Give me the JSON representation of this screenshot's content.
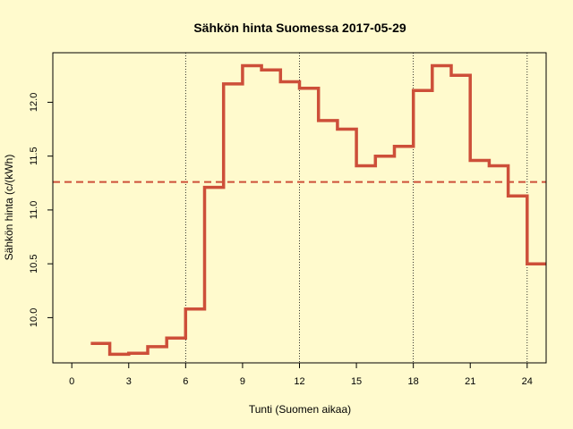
{
  "chart_data": {
    "type": "line",
    "style": "step",
    "title": "Sähkön hinta Suomessa 2017-05-29",
    "xlabel": "Tunti (Suomen aikaa)",
    "ylabel": "Sähkön hinta (c/(kWh)",
    "xlim": [
      -1,
      25
    ],
    "ylim": [
      9.58,
      12.46
    ],
    "xticks": [
      0,
      3,
      6,
      9,
      12,
      15,
      18,
      21,
      24
    ],
    "yticks": [
      10.0,
      10.5,
      11.0,
      11.5,
      12.0
    ],
    "ytick_labels": [
      "10.0",
      "10.5",
      "11.0",
      "11.5",
      "12.0"
    ],
    "vlines": [
      6,
      12,
      18,
      24
    ],
    "mean_line": 11.26,
    "grid": false,
    "line_color": "#cd4f39",
    "mean_line_color": "#cd4f39",
    "background": "#fffacd",
    "series": [
      {
        "x": [
          1,
          2,
          3,
          4,
          5,
          6,
          7,
          8,
          9,
          10,
          11,
          12,
          13,
          14,
          15,
          16,
          17,
          18,
          19,
          20,
          21,
          22,
          23,
          24
        ],
        "values": [
          9.76,
          9.66,
          9.67,
          9.73,
          9.81,
          10.08,
          11.21,
          12.17,
          12.34,
          12.3,
          12.19,
          12.13,
          11.83,
          11.75,
          11.41,
          11.5,
          11.59,
          12.11,
          12.34,
          12.25,
          11.46,
          11.41,
          11.13,
          10.5
        ]
      }
    ]
  }
}
